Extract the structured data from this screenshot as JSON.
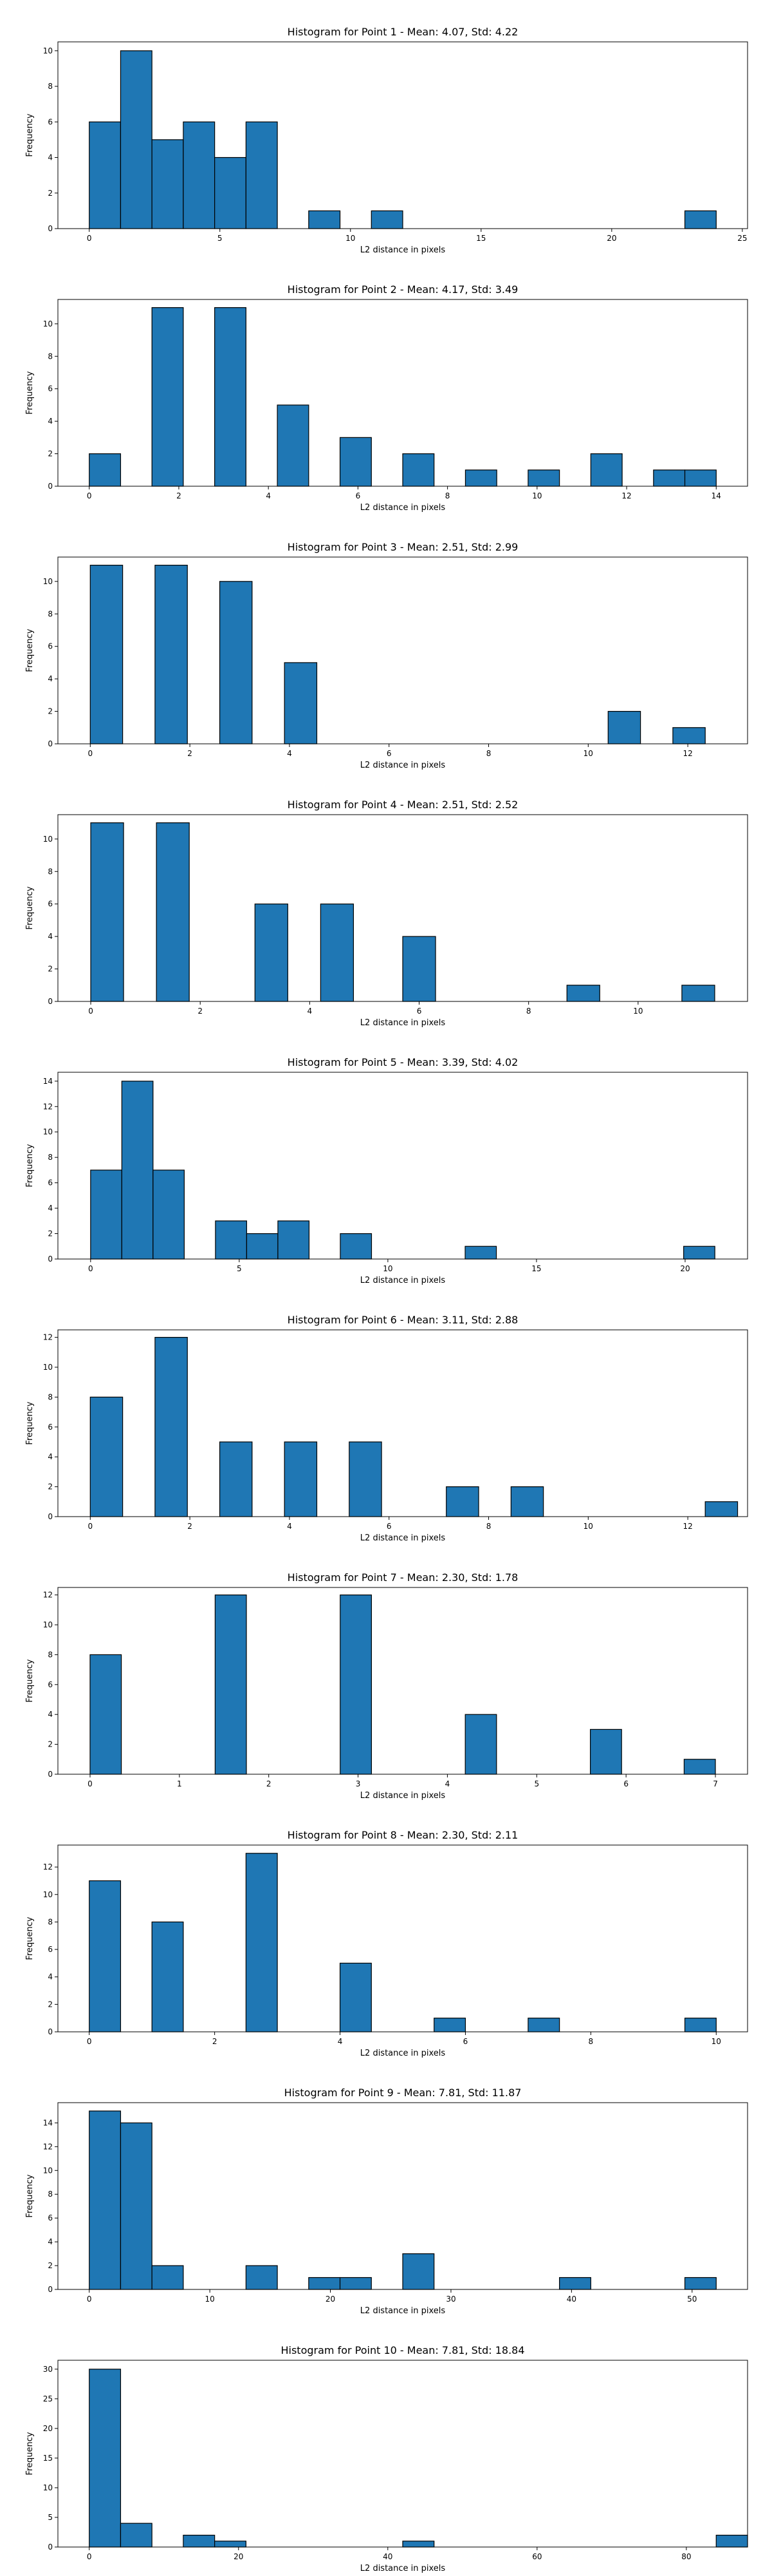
{
  "chart_data": [
    {
      "type": "bar",
      "title": "Histogram for Point 1 - Mean: 4.07, Std: 4.22",
      "xlabel": "L2 distance in pixels",
      "ylabel": "Frequency",
      "xlim": [
        -1.2,
        25.2
      ],
      "ylim": [
        0,
        10.5
      ],
      "xticks": [
        0,
        5,
        10,
        15,
        20,
        25
      ],
      "yticks": [
        0,
        2,
        4,
        6,
        8,
        10
      ],
      "bin_width": 1.2,
      "bins": [
        {
          "x": 0.0,
          "value": 6
        },
        {
          "x": 1.2,
          "value": 10
        },
        {
          "x": 2.4,
          "value": 5
        },
        {
          "x": 3.6,
          "value": 6
        },
        {
          "x": 4.8,
          "value": 4
        },
        {
          "x": 6.0,
          "value": 6
        },
        {
          "x": 8.4,
          "value": 1
        },
        {
          "x": 10.8,
          "value": 1
        },
        {
          "x": 22.8,
          "value": 1
        }
      ]
    },
    {
      "type": "bar",
      "title": "Histogram for Point 2 - Mean: 4.17, Std: 3.49",
      "xlabel": "L2 distance in pixels",
      "ylabel": "Frequency",
      "xlim": [
        -0.7,
        14.7
      ],
      "ylim": [
        0,
        11.5
      ],
      "xticks": [
        0,
        2,
        4,
        6,
        8,
        10,
        12,
        14
      ],
      "yticks": [
        0,
        2,
        4,
        6,
        8,
        10
      ],
      "bin_width": 0.7,
      "bins": [
        {
          "x": 0.0,
          "value": 2
        },
        {
          "x": 1.4,
          "value": 11
        },
        {
          "x": 2.8,
          "value": 11
        },
        {
          "x": 4.2,
          "value": 5
        },
        {
          "x": 5.6,
          "value": 3
        },
        {
          "x": 7.0,
          "value": 2
        },
        {
          "x": 8.4,
          "value": 1
        },
        {
          "x": 9.8,
          "value": 1
        },
        {
          "x": 11.2,
          "value": 2
        },
        {
          "x": 12.6,
          "value": 1
        },
        {
          "x": 13.3,
          "value": 1
        }
      ]
    },
    {
      "type": "bar",
      "title": "Histogram for Point 3 - Mean: 2.51, Std: 2.99",
      "xlabel": "L2 distance in pixels",
      "ylabel": "Frequency",
      "xlim": [
        -0.65,
        13.2
      ],
      "ylim": [
        0,
        11.5
      ],
      "xticks": [
        0,
        2,
        4,
        6,
        8,
        10,
        12
      ],
      "yticks": [
        0,
        2,
        4,
        6,
        8,
        10
      ],
      "bin_width": 0.65,
      "bins": [
        {
          "x": 0.0,
          "value": 11
        },
        {
          "x": 1.3,
          "value": 11
        },
        {
          "x": 2.6,
          "value": 10
        },
        {
          "x": 3.9,
          "value": 5
        },
        {
          "x": 10.4,
          "value": 2
        },
        {
          "x": 11.7,
          "value": 1
        }
      ]
    },
    {
      "type": "bar",
      "title": "Histogram for Point 4 - Mean: 2.51, Std: 2.52",
      "xlabel": "L2 distance in pixels",
      "ylabel": "Frequency",
      "xlim": [
        -0.6,
        12.0
      ],
      "ylim": [
        0,
        11.5
      ],
      "xticks": [
        0,
        2,
        4,
        6,
        8,
        10
      ],
      "yticks": [
        0,
        2,
        4,
        6,
        8,
        10
      ],
      "bin_width": 0.6,
      "bins": [
        {
          "x": 0.0,
          "value": 11
        },
        {
          "x": 1.2,
          "value": 11
        },
        {
          "x": 3.0,
          "value": 6
        },
        {
          "x": 4.2,
          "value": 6
        },
        {
          "x": 5.7,
          "value": 4
        },
        {
          "x": 8.7,
          "value": 1
        },
        {
          "x": 10.8,
          "value": 1
        }
      ]
    },
    {
      "type": "bar",
      "title": "Histogram for Point 5 - Mean: 3.39, Std: 4.02",
      "xlabel": "L2 distance in pixels",
      "ylabel": "Frequency",
      "xlim": [
        -1.1,
        22.1
      ],
      "ylim": [
        0,
        14.7
      ],
      "xticks": [
        0,
        5,
        10,
        15,
        20
      ],
      "yticks": [
        0,
        2,
        4,
        6,
        8,
        10,
        12,
        14
      ],
      "bin_width": 1.05,
      "bins": [
        {
          "x": 0.0,
          "value": 7
        },
        {
          "x": 1.05,
          "value": 14
        },
        {
          "x": 2.1,
          "value": 7
        },
        {
          "x": 4.2,
          "value": 3
        },
        {
          "x": 5.25,
          "value": 2
        },
        {
          "x": 6.3,
          "value": 3
        },
        {
          "x": 8.4,
          "value": 2
        },
        {
          "x": 12.6,
          "value": 1
        },
        {
          "x": 19.95,
          "value": 1
        }
      ]
    },
    {
      "type": "bar",
      "title": "Histogram for Point 6 - Mean: 3.11, Std: 2.88",
      "xlabel": "L2 distance in pixels",
      "ylabel": "Frequency",
      "xlim": [
        -0.65,
        13.2
      ],
      "ylim": [
        0,
        12.5
      ],
      "xticks": [
        0,
        2,
        4,
        6,
        8,
        10,
        12
      ],
      "yticks": [
        0,
        2,
        4,
        6,
        8,
        10,
        12
      ],
      "bin_width": 0.65,
      "bins": [
        {
          "x": 0.0,
          "value": 8
        },
        {
          "x": 1.3,
          "value": 12
        },
        {
          "x": 2.6,
          "value": 5
        },
        {
          "x": 3.9,
          "value": 5
        },
        {
          "x": 5.2,
          "value": 5
        },
        {
          "x": 7.15,
          "value": 2
        },
        {
          "x": 8.45,
          "value": 2
        },
        {
          "x": 12.35,
          "value": 1
        }
      ]
    },
    {
      "type": "bar",
      "title": "Histogram for Point 7 - Mean: 2.30, Std: 1.78",
      "xlabel": "L2 distance in pixels",
      "ylabel": "Frequency",
      "xlim": [
        -0.36,
        7.36
      ],
      "ylim": [
        0,
        12.5
      ],
      "xticks": [
        0,
        1,
        2,
        3,
        4,
        5,
        6,
        7
      ],
      "yticks": [
        0,
        2,
        4,
        6,
        8,
        10,
        12
      ],
      "bin_width": 0.35,
      "bins": [
        {
          "x": 0.0,
          "value": 8
        },
        {
          "x": 1.4,
          "value": 12
        },
        {
          "x": 2.8,
          "value": 12
        },
        {
          "x": 4.2,
          "value": 4
        },
        {
          "x": 5.6,
          "value": 3
        },
        {
          "x": 6.65,
          "value": 1
        }
      ]
    },
    {
      "type": "bar",
      "title": "Histogram for Point 8 - Mean: 2.30, Std: 2.11",
      "xlabel": "L2 distance in pixels",
      "ylabel": "Frequency",
      "xlim": [
        -0.5,
        10.5
      ],
      "ylim": [
        0,
        13.6
      ],
      "xticks": [
        0,
        2,
        4,
        6,
        8,
        10
      ],
      "yticks": [
        0,
        2,
        4,
        6,
        8,
        10,
        12
      ],
      "bin_width": 0.5,
      "bins": [
        {
          "x": 0.0,
          "value": 11
        },
        {
          "x": 1.0,
          "value": 8
        },
        {
          "x": 2.5,
          "value": 13
        },
        {
          "x": 4.0,
          "value": 5
        },
        {
          "x": 5.5,
          "value": 1
        },
        {
          "x": 7.0,
          "value": 1
        },
        {
          "x": 9.5,
          "value": 1
        }
      ]
    },
    {
      "type": "bar",
      "title": "Histogram for Point 9 - Mean: 7.81, Std: 11.87",
      "xlabel": "L2 distance in pixels",
      "ylabel": "Frequency",
      "xlim": [
        -2.6,
        54.6
      ],
      "ylim": [
        0,
        15.7
      ],
      "xticks": [
        0,
        10,
        20,
        30,
        40,
        50
      ],
      "yticks": [
        0,
        2,
        4,
        6,
        8,
        10,
        12,
        14
      ],
      "bin_width": 2.6,
      "bins": [
        {
          "x": 0.0,
          "value": 15
        },
        {
          "x": 2.6,
          "value": 14
        },
        {
          "x": 5.2,
          "value": 2
        },
        {
          "x": 13.0,
          "value": 2
        },
        {
          "x": 18.2,
          "value": 1
        },
        {
          "x": 20.8,
          "value": 1
        },
        {
          "x": 26.0,
          "value": 3
        },
        {
          "x": 39.0,
          "value": 1
        },
        {
          "x": 49.4,
          "value": 1
        }
      ]
    },
    {
      "type": "bar",
      "title": "Histogram for Point 10 - Mean: 7.81, Std: 18.84",
      "xlabel": "L2 distance in pixels",
      "ylabel": "Frequency",
      "xlim": [
        -4.2,
        88.2
      ],
      "ylim": [
        0,
        31.5
      ],
      "xticks": [
        0,
        20,
        40,
        60,
        80
      ],
      "yticks": [
        0,
        5,
        10,
        15,
        20,
        25,
        30
      ],
      "bin_width": 4.2,
      "bins": [
        {
          "x": 0.0,
          "value": 30
        },
        {
          "x": 4.2,
          "value": 4
        },
        {
          "x": 12.6,
          "value": 2
        },
        {
          "x": 16.8,
          "value": 1
        },
        {
          "x": 42.0,
          "value": 1
        },
        {
          "x": 84.0,
          "value": 2
        }
      ]
    }
  ]
}
